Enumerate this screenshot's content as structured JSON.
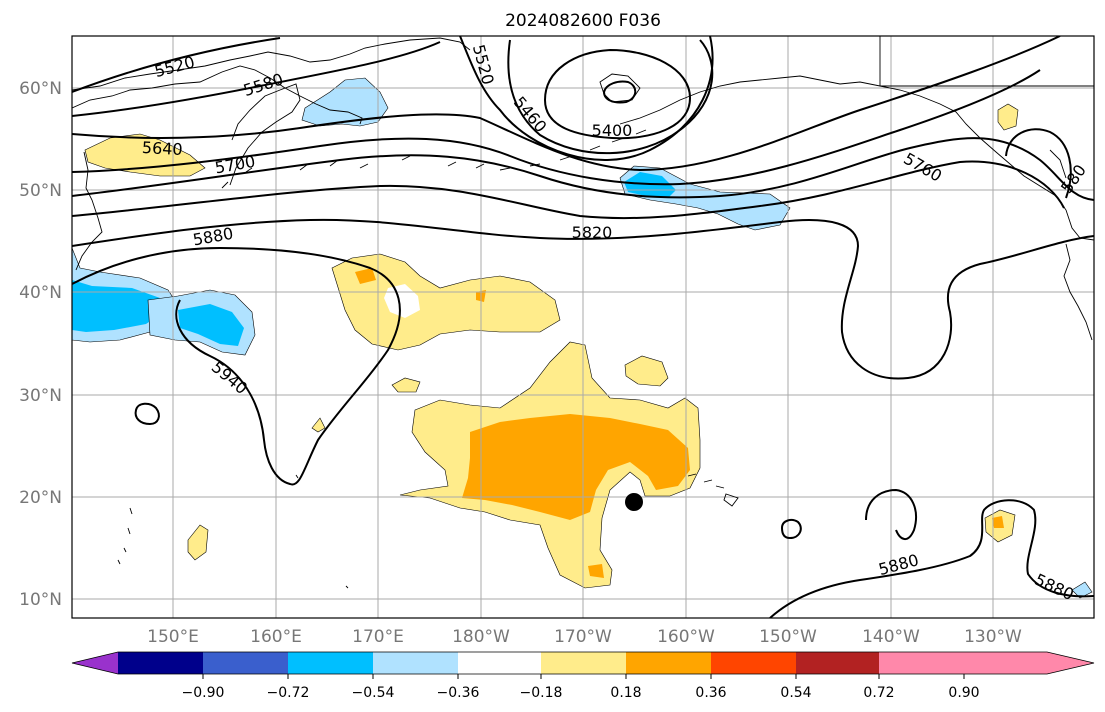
{
  "title": "2024082600 F036",
  "lat_labels": [
    "10°N",
    "20°N",
    "30°N",
    "40°N",
    "50°N",
    "60°N"
  ],
  "lon_labels": [
    "150°E",
    "160°E",
    "170°E",
    "180°W",
    "170°W",
    "160°W",
    "150°W",
    "140°W",
    "130°W"
  ],
  "contour_labels": [
    "5520",
    "5580",
    "5520",
    "5460",
    "5400",
    "5640",
    "5700",
    "5760",
    "5880",
    "5820",
    "5940",
    "5880",
    "5880",
    "580"
  ],
  "colorbar": {
    "tick_labels": [
      "−0.90",
      "−0.72",
      "−0.54",
      "−0.36",
      "−0.18",
      "0.18",
      "0.36",
      "0.54",
      "0.72",
      "0.90"
    ],
    "colors": [
      "#9932CC",
      "#00008B",
      "#3A5FCD",
      "#00BFFF",
      "#B0E2FF",
      "#FFFFFF",
      "#FFEC8B",
      "#FFA500",
      "#FF4500",
      "#B22222",
      "#FF88AA"
    ]
  },
  "colors": {
    "neg_light": "#B0E2FF",
    "neg_mid": "#00BFFF",
    "pos_light": "#FFEC8B",
    "pos_mid": "#FFA500",
    "pos_strong": "#FF4500"
  },
  "marker": "storm-center-dot"
}
